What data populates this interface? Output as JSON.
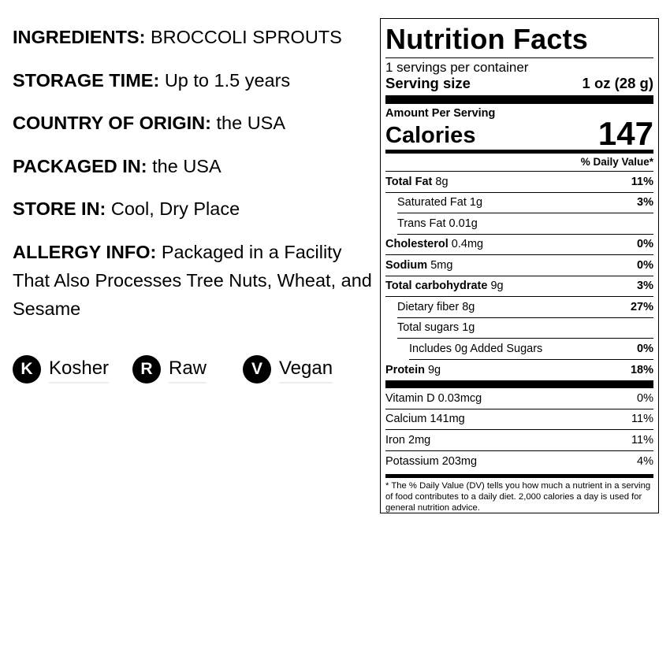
{
  "info": [
    {
      "label": "INGREDIENTS:",
      "value": "BROCCOLI SPROUTS"
    },
    {
      "label": "STORAGE TIME:",
      "value": "Up to 1.5 years"
    },
    {
      "label": "COUNTRY OF ORIGIN:",
      "value": "the USA"
    },
    {
      "label": "PACKAGED IN:",
      "value": "the USA"
    },
    {
      "label": "STORE IN:",
      "value": "Cool, Dry Place"
    },
    {
      "label": "ALLERGY INFO:",
      "value": "Packaged in a Facility That Also Processes Tree Nuts, Wheat, and Sesame"
    }
  ],
  "badges": [
    {
      "letter": "K",
      "label": "Kosher"
    },
    {
      "letter": "R",
      "label": "Raw"
    },
    {
      "letter": "V",
      "label": "Vegan"
    }
  ],
  "label": {
    "title": "Nutrition Facts",
    "servings": "1 servings per container",
    "serving_size_label": "Serving size",
    "serving_size": "1 oz (28 g)",
    "amount_per_serving": "Amount Per Serving",
    "calories_label": "Calories",
    "calories": "147",
    "dv_header": "% Daily Value*",
    "nutrients": [
      {
        "name": "Total Fat",
        "amount": "8g",
        "dv": "11%"
      },
      {
        "name": "Saturated Fat",
        "amount": "1g",
        "dv": "3%"
      },
      {
        "name": "Trans Fat",
        "amount": "0.01g",
        "dv": ""
      },
      {
        "name": "Cholesterol",
        "amount": "0.4mg",
        "dv": "0%"
      },
      {
        "name": "Sodium",
        "amount": "5mg",
        "dv": "0%"
      },
      {
        "name": "Total carbohydrate",
        "amount": "9g",
        "dv": "3%"
      },
      {
        "name": "Dietary fiber",
        "amount": "8g",
        "dv": "27%"
      },
      {
        "name": "Total sugars",
        "amount": "1g",
        "dv": ""
      },
      {
        "name": "Includes 0g Added Sugars",
        "amount": "",
        "dv": "0%"
      },
      {
        "name": "Protein",
        "amount": "9g",
        "dv": "18%"
      }
    ],
    "vitamins": [
      {
        "name": "Vitamin D 0.03mcg",
        "dv": "0%"
      },
      {
        "name": "Calcium 141mg",
        "dv": "11%"
      },
      {
        "name": "Iron 2mg",
        "dv": "11%"
      },
      {
        "name": "Potassium 203mg",
        "dv": "4%"
      }
    ],
    "footnote": "* The % Daily Value (DV) tells you how much a nutrient in a serving of food contributes to a daily diet. 2,000 calories a day is used for general nutrition advice."
  }
}
